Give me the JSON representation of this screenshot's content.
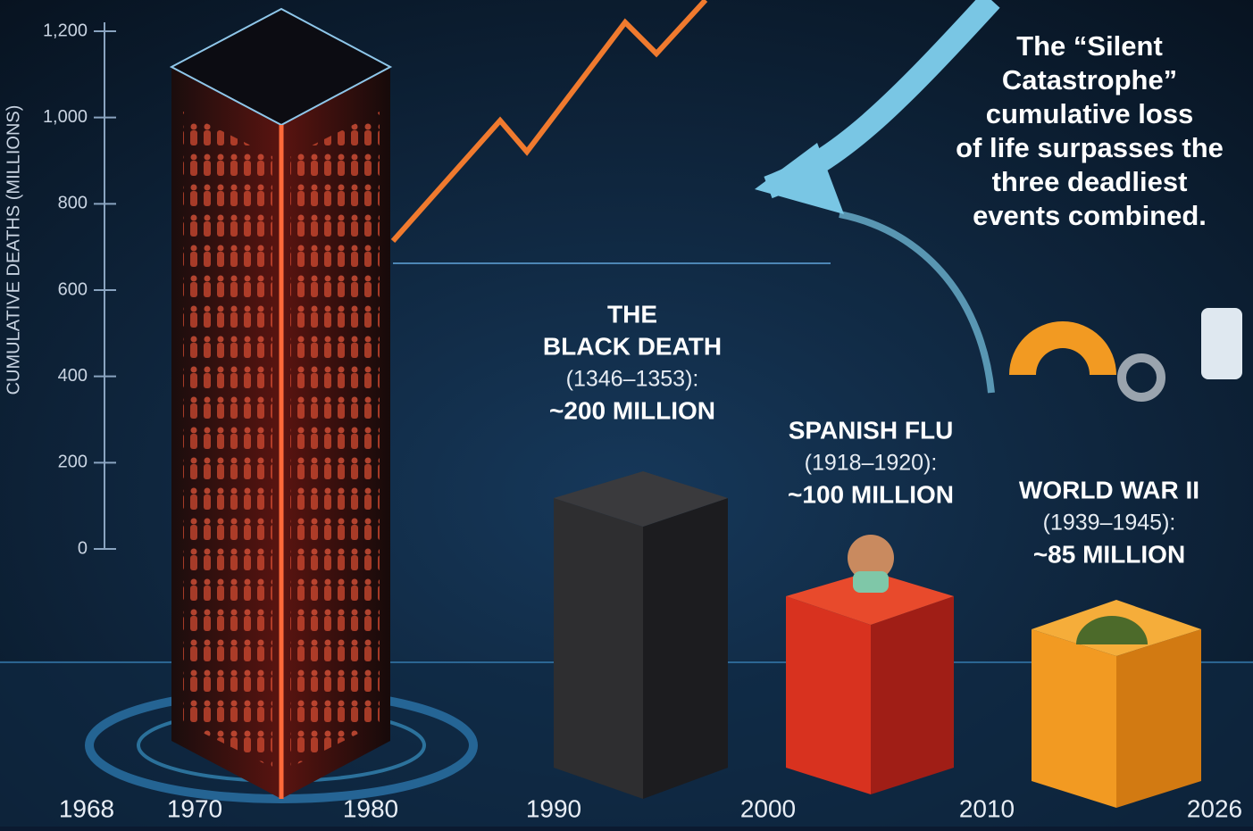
{
  "chart_data": {
    "type": "infographic",
    "y_label": "CUMULATIVE DEATHS (MILLIONS)",
    "ylim": [
      0,
      1200
    ],
    "yticks": [
      0,
      200,
      400,
      600,
      800,
      {
        "value": 1000,
        "label": "1,000"
      },
      {
        "value": 1200,
        "label": "1,200"
      }
    ],
    "x_labels": [
      "1968",
      "1970",
      "1980",
      "1990",
      "2000",
      "2010",
      "2026"
    ],
    "callout": [
      "The “Silent",
      "Catastrophe”",
      "cumulative loss",
      "of life surpasses the",
      "three deadliest",
      "events combined."
    ],
    "events": [
      {
        "title": [
          "THE",
          "BLACK DEATH"
        ],
        "dates": "(1346–1353):",
        "amount": "~200 MILLION"
      },
      {
        "title": [
          "SPANISH FLU"
        ],
        "dates": "(1918–1920):",
        "amount": "~100 MILLION"
      },
      {
        "title": [
          "WORLD WAR II"
        ],
        "dates": "(1939–1945):",
        "amount": "~85 MILLION"
      }
    ]
  }
}
